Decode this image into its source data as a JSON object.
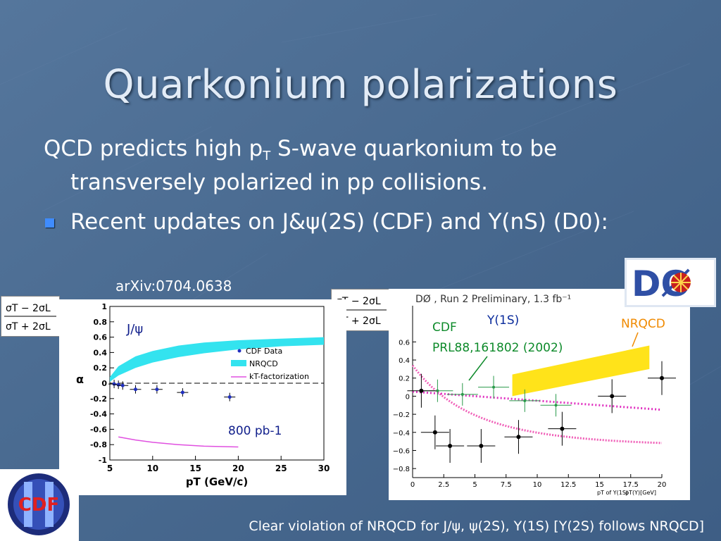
{
  "slide": {
    "title": "Quarkonium polarizations",
    "line1_a": "QCD predicts high p",
    "line1_sub": "T",
    "line1_b": " S-wave quarkonium to be",
    "line2": "transversely polarized in pp collisions.",
    "bullet": "Recent updates on J&ψ(2S) (CDF) and Y(nS) (D0):",
    "arxiv": "arXiv:0704.0638",
    "footer": "Clear violation of NRQCD for  J/ψ, ψ(2S), Y(1S)  [Y(2S) follows NRQCD]",
    "colors": {
      "background": "#4a6b92",
      "title": "#e3ecf7",
      "text": "#ffffff",
      "bullet": "#3f8cff"
    }
  },
  "formula": {
    "num": "σT − 2σL",
    "den": "σT + 2σL"
  },
  "logos": {
    "cdf": "CDF",
    "d0": "DØ"
  },
  "chart_data": [
    {
      "type": "line",
      "panel": "CDF J/psi polarization",
      "annotation": "J/ψ",
      "luminosity_label": "800 pb-1",
      "ylabel": "α",
      "xlabel": "pT (GeV/c)",
      "xlim": [
        5,
        30
      ],
      "ylim": [
        -1,
        1
      ],
      "x_ticks": [
        5,
        10,
        15,
        20,
        25,
        30
      ],
      "x_tick_labels": [
        "5",
        "10",
        "15",
        "20",
        "25",
        "30"
      ],
      "y_ticks": [
        1,
        0.8,
        0.6,
        0.4,
        0.2,
        0,
        -0.2,
        -0.4,
        -0.6,
        -0.8,
        -1
      ],
      "y_tick_labels": [
        "1",
        "0.8",
        "0.6",
        "0.4",
        "0.2",
        "0",
        "-0.2",
        "-0.4",
        "-0.6",
        "-0.8",
        "-1"
      ],
      "legend": [
        "CDF Data",
        "NRQCD",
        "kT-factorization"
      ],
      "series": [
        {
          "name": "CDF Data",
          "x": [
            5.5,
            6.0,
            6.5,
            8.0,
            10.5,
            13.5,
            19.0
          ],
          "y": [
            -0.01,
            -0.02,
            -0.03,
            -0.08,
            -0.08,
            -0.12,
            -0.18
          ]
        },
        {
          "name": "NRQCD",
          "x": [
            5.0,
            6.0,
            8.0,
            10.0,
            13.0,
            16.0,
            20.0,
            25.0,
            30.0
          ],
          "y_low": [
            0.02,
            0.1,
            0.2,
            0.27,
            0.34,
            0.39,
            0.44,
            0.48,
            0.5
          ],
          "y_high": [
            0.08,
            0.22,
            0.35,
            0.42,
            0.49,
            0.53,
            0.56,
            0.58,
            0.6
          ]
        },
        {
          "name": "kT-factorization",
          "x": [
            6.0,
            8.0,
            10.0,
            13.0,
            16.0,
            20.0
          ],
          "y": [
            -0.7,
            -0.74,
            -0.77,
            -0.8,
            -0.82,
            -0.83
          ]
        }
      ]
    },
    {
      "type": "scatter",
      "panel": "D0 Y(1S) polarization",
      "title": "DØ , Run 2 Preliminary, 1.3 fb⁻¹",
      "series_label": "Y(1S)",
      "annotations": [
        "CDF",
        "PRL88,161802 (2002)",
        "NRQCD"
      ],
      "xlabel": "pT of Y(1S)",
      "xlabel2": "pT(Y)[GeV]",
      "xlim": [
        0,
        20
      ],
      "ylim": [
        -0.9,
        1.0
      ],
      "x_ticks": [
        0,
        2.5,
        5,
        7.5,
        10,
        12.5,
        15,
        17.5,
        20
      ],
      "x_tick_labels": [
        "0",
        "2.5",
        "5",
        "7.5",
        "10",
        "12.5",
        "15",
        "17.5",
        "20"
      ],
      "y_ticks": [
        0.6,
        0.4,
        0.2,
        0,
        -0.2,
        -0.4,
        -0.6,
        -0.8
      ],
      "y_tick_labels": [
        "0.6",
        "0.4",
        "0.2",
        "0",
        "−0.2",
        "−0.4",
        "−0.6",
        "−0.8"
      ],
      "series": [
        {
          "name": "DØ",
          "x": [
            0.7,
            1.8,
            3.0,
            5.5,
            8.5,
            12.0,
            16.0,
            20.0
          ],
          "y": [
            0.06,
            -0.4,
            -0.55,
            -0.55,
            -0.45,
            -0.36,
            0.0,
            0.2
          ]
        },
        {
          "name": "CDF",
          "x": [
            2.0,
            4.0,
            6.5,
            9.0,
            11.5
          ],
          "y": [
            0.06,
            0.02,
            0.1,
            -0.05,
            -0.1
          ]
        },
        {
          "name": "NRQCD",
          "x": [
            8.0,
            19.0
          ],
          "y_low": [
            0.0,
            0.3
          ],
          "y_high": [
            0.24,
            0.56
          ]
        }
      ]
    }
  ]
}
